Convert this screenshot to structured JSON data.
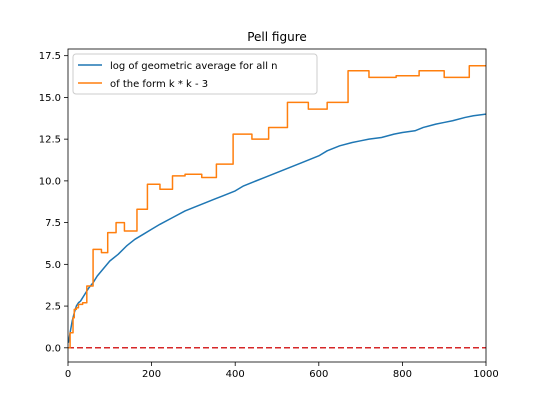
{
  "chart_data": {
    "type": "line",
    "title": "Pell figure",
    "xlabel": "",
    "ylabel": "",
    "xlim": [
      0,
      1000
    ],
    "ylim": [
      -0.85,
      17.9
    ],
    "xticks": [
      0,
      200,
      400,
      600,
      800,
      1000
    ],
    "xtick_labels": [
      "0",
      "200",
      "400",
      "600",
      "800",
      "1000"
    ],
    "yticks": [
      0.0,
      2.5,
      5.0,
      7.5,
      10.0,
      12.5,
      15.0,
      17.5
    ],
    "ytick_labels": [
      "0.0",
      "2.5",
      "5.0",
      "7.5",
      "10.0",
      "12.5",
      "15.0",
      "17.5"
    ],
    "grid": false,
    "legend_position": "upper left",
    "series": [
      {
        "name": "log of geometric average for all n",
        "color": "#1f77b4",
        "style": "solid",
        "x": [
          1,
          5,
          10,
          15,
          20,
          25,
          30,
          40,
          50,
          60,
          70,
          80,
          90,
          100,
          120,
          140,
          160,
          180,
          200,
          220,
          250,
          280,
          300,
          330,
          350,
          370,
          400,
          420,
          450,
          470,
          500,
          530,
          560,
          600,
          620,
          650,
          680,
          700,
          720,
          750,
          780,
          800,
          830,
          850,
          880,
          900,
          920,
          950,
          970,
          1000
        ],
        "y": [
          0.3,
          0.9,
          1.6,
          2.1,
          2.5,
          2.7,
          2.8,
          3.2,
          3.6,
          3.9,
          4.3,
          4.6,
          4.9,
          5.2,
          5.6,
          6.1,
          6.5,
          6.8,
          7.1,
          7.4,
          7.8,
          8.2,
          8.4,
          8.7,
          8.9,
          9.1,
          9.4,
          9.7,
          10.0,
          10.2,
          10.5,
          10.8,
          11.1,
          11.5,
          11.8,
          12.1,
          12.3,
          12.4,
          12.5,
          12.6,
          12.8,
          12.9,
          13.0,
          13.2,
          13.4,
          13.5,
          13.6,
          13.8,
          13.9,
          14.0
        ]
      },
      {
        "name": "of the form k * k - 3",
        "color": "#ff7f0e",
        "style": "steps-post",
        "x": [
          1,
          5,
          12,
          15,
          20,
          25,
          35,
          45,
          60,
          80,
          95,
          115,
          135,
          165,
          190,
          220,
          250,
          280,
          320,
          355,
          395,
          440,
          480,
          525,
          575,
          620,
          670,
          720,
          785,
          840,
          900,
          960
        ],
        "y": [
          0.0,
          0.9,
          1.8,
          2.3,
          2.4,
          2.6,
          2.7,
          3.7,
          5.9,
          5.7,
          6.9,
          7.5,
          7.0,
          8.3,
          9.8,
          9.5,
          10.3,
          10.4,
          10.2,
          11.0,
          12.8,
          12.5,
          13.2,
          14.7,
          14.3,
          14.7,
          16.6,
          16.2,
          16.3,
          16.6,
          16.2,
          16.9
        ]
      },
      {
        "name": "",
        "color": "#d62728",
        "style": "dashed",
        "x": [
          0,
          1000
        ],
        "y": [
          0.0,
          0.0
        ]
      }
    ]
  }
}
